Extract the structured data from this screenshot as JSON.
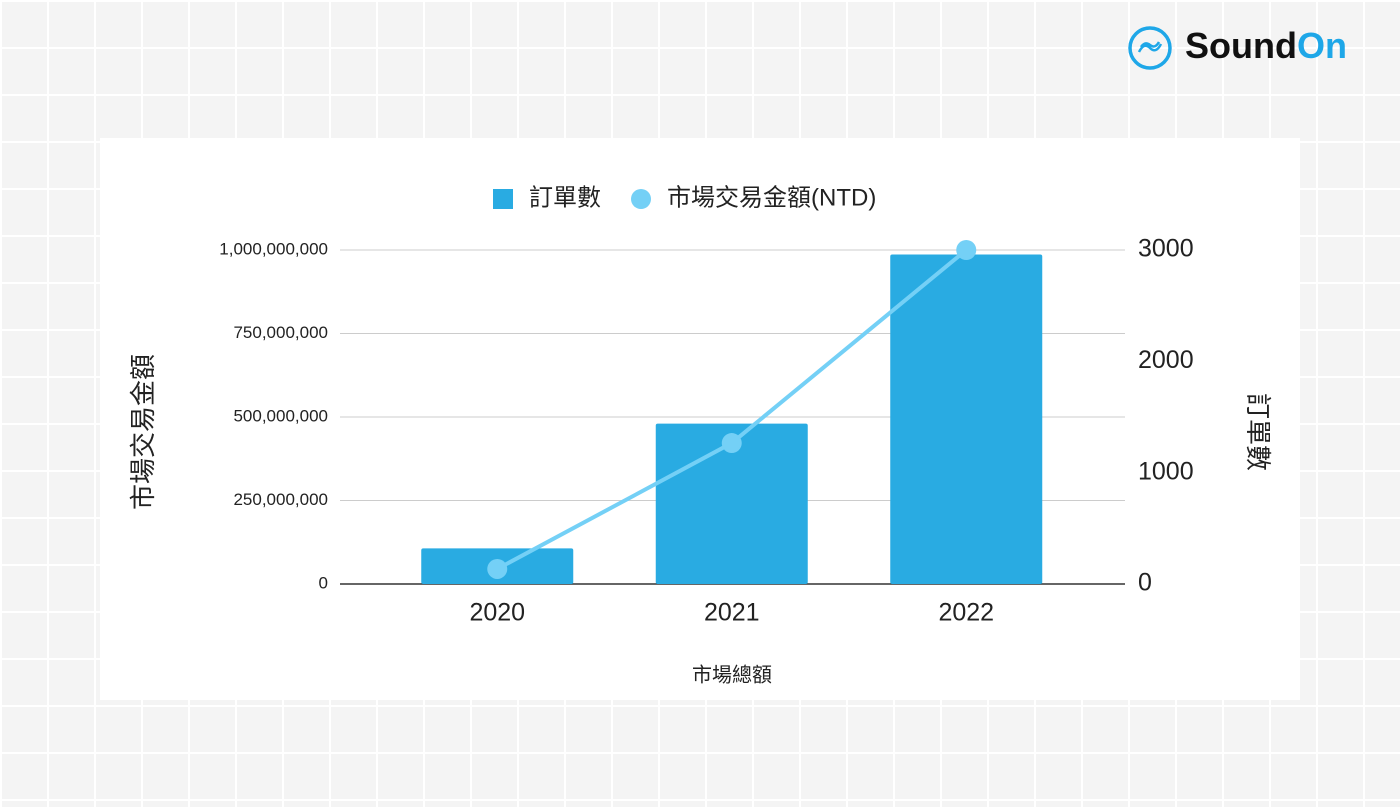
{
  "brand": [
    "Sound",
    "On"
  ],
  "chart_data": {
    "type": "combo",
    "x_label": "市場總額",
    "y_label": "市場交易金額",
    "y2_label": "訂單數",
    "categories": [
      "2020",
      "2021",
      "2022"
    ],
    "series": [
      {
        "name": "訂單數",
        "type": "bar",
        "axis": "y2",
        "color": "#29abe2",
        "values": [
          320,
          1440,
          2960
        ]
      },
      {
        "name": "市場交易金額(NTD)",
        "type": "line",
        "color": "#74d0f6",
        "values": [
          45000000,
          422000000,
          1000000000
        ]
      }
    ],
    "ylim": [
      0,
      1000000000
    ],
    "yticks": [
      0,
      {
        "value": 250000000,
        "label": "250,000,000"
      },
      {
        "value": 500000000,
        "label": "500,000,000"
      },
      {
        "value": 750000000,
        "label": "750,000,000"
      },
      {
        "value": 1000000000,
        "label": "1,000,000,000"
      }
    ],
    "y2lim": [
      0,
      3000
    ],
    "y2ticks": [
      0,
      1000,
      2000,
      3000
    ],
    "grid": true,
    "legend": "top"
  }
}
